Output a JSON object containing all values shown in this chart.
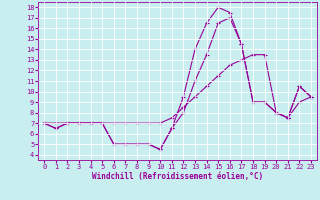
{
  "xlabel": "Windchill (Refroidissement éolien,°C)",
  "background_color": "#c8eef0",
  "line_color": "#990099",
  "xlim": [
    -0.5,
    23.5
  ],
  "ylim": [
    3.5,
    18.5
  ],
  "yticks": [
    4,
    5,
    6,
    7,
    8,
    9,
    10,
    11,
    12,
    13,
    14,
    15,
    16,
    17,
    18
  ],
  "xticks": [
    0,
    1,
    2,
    3,
    4,
    5,
    6,
    7,
    8,
    9,
    10,
    11,
    12,
    13,
    14,
    15,
    16,
    17,
    18,
    19,
    20,
    21,
    22,
    23
  ],
  "line1_x": [
    0,
    1,
    2,
    3,
    4,
    5,
    6,
    7,
    8,
    9,
    10,
    11,
    12,
    13,
    14,
    15,
    16,
    17,
    18,
    19,
    20,
    21,
    22,
    23
  ],
  "line1_y": [
    7.0,
    6.5,
    7.0,
    7.0,
    7.0,
    7.0,
    5.0,
    5.0,
    5.0,
    5.0,
    4.5,
    6.5,
    9.5,
    14.0,
    16.5,
    18.0,
    17.5,
    14.5,
    9.0,
    9.0,
    8.0,
    7.5,
    10.5,
    9.5
  ],
  "line2_x": [
    0,
    1,
    2,
    3,
    4,
    5,
    6,
    7,
    8,
    9,
    10,
    11,
    12,
    13,
    14,
    15,
    16,
    17,
    18,
    19,
    20,
    21,
    22,
    23
  ],
  "line2_y": [
    7.0,
    6.5,
    7.0,
    7.0,
    7.0,
    7.0,
    5.0,
    5.0,
    5.0,
    5.0,
    4.5,
    6.5,
    8.0,
    11.0,
    13.5,
    16.5,
    17.0,
    14.5,
    9.0,
    9.0,
    8.0,
    7.5,
    10.5,
    9.5
  ],
  "line3_x": [
    0,
    1,
    2,
    3,
    4,
    5,
    6,
    7,
    8,
    9,
    10,
    11,
    12,
    13,
    14,
    15,
    16,
    17,
    18,
    19,
    20,
    21,
    22,
    23
  ],
  "line3_y": [
    7.0,
    7.0,
    7.0,
    7.0,
    7.0,
    7.0,
    7.0,
    7.0,
    7.0,
    7.0,
    7.0,
    7.5,
    8.5,
    9.5,
    10.5,
    11.5,
    12.5,
    13.0,
    13.5,
    13.5,
    8.0,
    7.5,
    9.0,
    9.5
  ],
  "xlabel_fontsize": 5.5,
  "tick_fontsize": 5.0,
  "grid_color": "#ffffff",
  "grid_lw": 0.6,
  "line_lw": 0.8,
  "marker_size": 3
}
